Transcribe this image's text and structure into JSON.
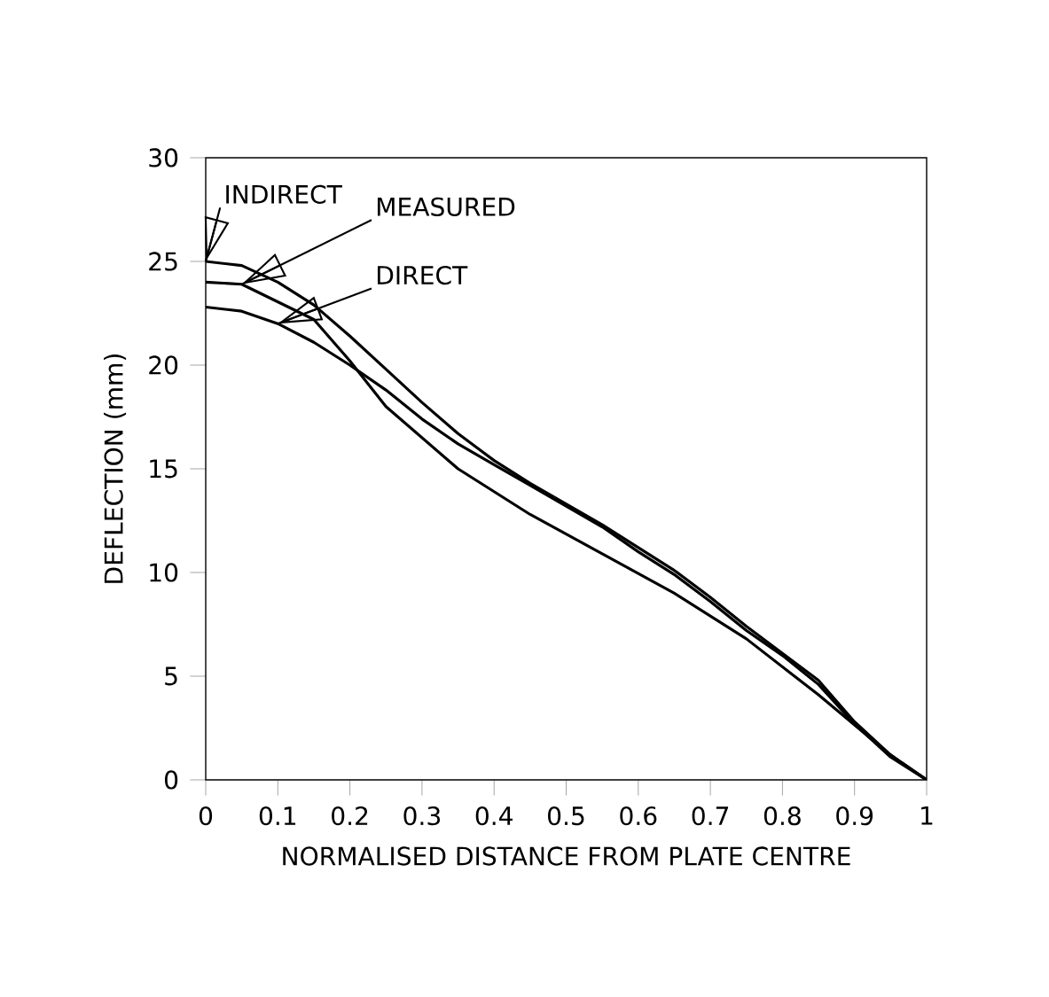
{
  "chart_data": {
    "type": "line",
    "xlabel": "NORMALISED DISTANCE FROM PLATE CENTRE",
    "ylabel": "DEFLECTION (mm)",
    "xlim": [
      0,
      1
    ],
    "ylim": [
      0,
      30
    ],
    "xticks": [
      0,
      0.1,
      0.2,
      0.3,
      0.4,
      0.5,
      0.6,
      0.7,
      0.8,
      0.9,
      1
    ],
    "yticks": [
      0,
      5,
      10,
      15,
      20,
      25,
      30
    ],
    "annotations": [
      {
        "text": "INDIRECT",
        "x": 0,
        "y": 25
      },
      {
        "text": "MEASURED",
        "x": 0.05,
        "y": 23.9
      },
      {
        "text": "DIRECT",
        "x": 0.1,
        "y": 22.0
      }
    ],
    "series": [
      {
        "color": "#000000",
        "x": [
          0,
          0.05,
          0.1,
          0.15,
          0.2,
          0.25,
          0.3,
          0.35,
          0.4,
          0.45,
          0.5,
          0.55,
          0.6,
          0.65,
          0.7,
          0.75,
          0.8,
          0.85,
          0.9,
          0.95,
          1
        ],
        "values": [
          25,
          24.8,
          24.0,
          22.9,
          21.4,
          19.8,
          18.2,
          16.7,
          15.4,
          14.3,
          13.3,
          12.3,
          11.2,
          10.1,
          8.8,
          7.4,
          6.1,
          4.8,
          2.8,
          1.2,
          0
        ]
      },
      {
        "color": "#000000",
        "x": [
          0,
          0.05,
          0.15,
          0.2,
          0.25,
          0.35,
          0.45,
          0.55,
          0.65,
          0.75,
          0.85,
          0.95,
          1
        ],
        "values": [
          24,
          23.9,
          22.2,
          20.2,
          18.0,
          15.0,
          12.8,
          10.9,
          9.0,
          6.8,
          4.1,
          1.2,
          0
        ]
      },
      {
        "color": "#000000",
        "x": [
          0,
          0.05,
          0.1,
          0.15,
          0.2,
          0.25,
          0.3,
          0.35,
          0.4,
          0.45,
          0.5,
          0.55,
          0.6,
          0.65,
          0.7,
          0.75,
          0.8,
          0.85,
          0.9,
          0.95,
          1
        ],
        "values": [
          22.8,
          22.6,
          22.0,
          21.1,
          20.0,
          18.8,
          17.4,
          16.2,
          15.2,
          14.2,
          13.2,
          12.2,
          11.0,
          9.9,
          8.6,
          7.2,
          6.0,
          4.6,
          2.7,
          1.1,
          0
        ]
      }
    ]
  }
}
